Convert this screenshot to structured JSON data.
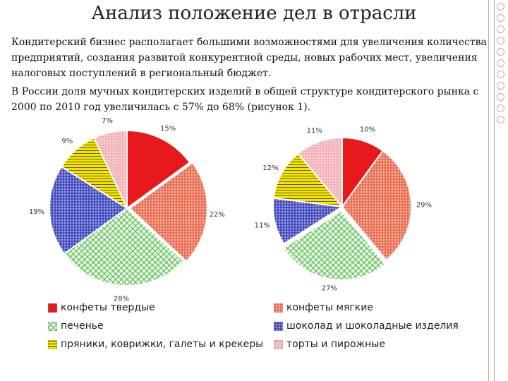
{
  "title": "Анализ положение дел в отрасли",
  "paragraphs": [
    "Кондитерский бизнес располагает большими возможностями для увеличения количества предприятий, создания развитой конкурентной среды, новых рабочих мест, увеличения налоговых поступлений в региональный бюджет.",
    "В России доля мучных кондитерских изделий в общей структуре кондитерского рынка с 2000 по 2010 год увеличилась с 57% до 68% (рисунок 1)."
  ],
  "colors": {
    "red": "#e8191c",
    "orange": "#e85a3c",
    "green": "#4db848",
    "blue": "#2b35b8",
    "yellow": "#f2e600",
    "pink": "#f2a6ae"
  },
  "chart_data": [
    {
      "type": "pie",
      "title": "",
      "series": [
        {
          "name": "конфеты твердые",
          "value": 15,
          "label": "15%"
        },
        {
          "name": "конфеты мягкие",
          "value": 22,
          "label": "22%"
        },
        {
          "name": "печенье",
          "value": 28,
          "label": "28%"
        },
        {
          "name": "шоколад и шоколадные изделия",
          "value": 19,
          "label": "19%"
        },
        {
          "name": "пряники, коврижки, галеты и крекеры",
          "value": 9,
          "label": "9%"
        },
        {
          "name": "торты и пирожные",
          "value": 7,
          "label": "7%"
        }
      ]
    },
    {
      "type": "pie",
      "title": "",
      "series": [
        {
          "name": "конфеты твердые",
          "value": 10,
          "label": "10%"
        },
        {
          "name": "конфеты мягкие",
          "value": 29,
          "label": "29%"
        },
        {
          "name": "печенье",
          "value": 27,
          "label": "27%"
        },
        {
          "name": "шоколад и шоколадные изделия",
          "value": 11,
          "label": "11%"
        },
        {
          "name": "пряники, коврижки, галеты и крекеры",
          "value": 12,
          "label": "12%"
        },
        {
          "name": "торты и пирожные",
          "value": 11,
          "label": "11%"
        }
      ]
    }
  ],
  "legend": [
    {
      "label": "конфеты твердые",
      "color_key": "red",
      "pattern": "solid"
    },
    {
      "label": "конфеты мягкие",
      "color_key": "orange",
      "pattern": "grid"
    },
    {
      "label": "печенье",
      "color_key": "green",
      "pattern": "diag"
    },
    {
      "label": "шоколад и шоколадные изделия",
      "color_key": "blue",
      "pattern": "grid"
    },
    {
      "label": "пряники, коврижки, галеты и крекеры",
      "color_key": "yellow",
      "pattern": "hstripe"
    },
    {
      "label": "торты и пирожные",
      "color_key": "pink",
      "pattern": "grid"
    }
  ]
}
